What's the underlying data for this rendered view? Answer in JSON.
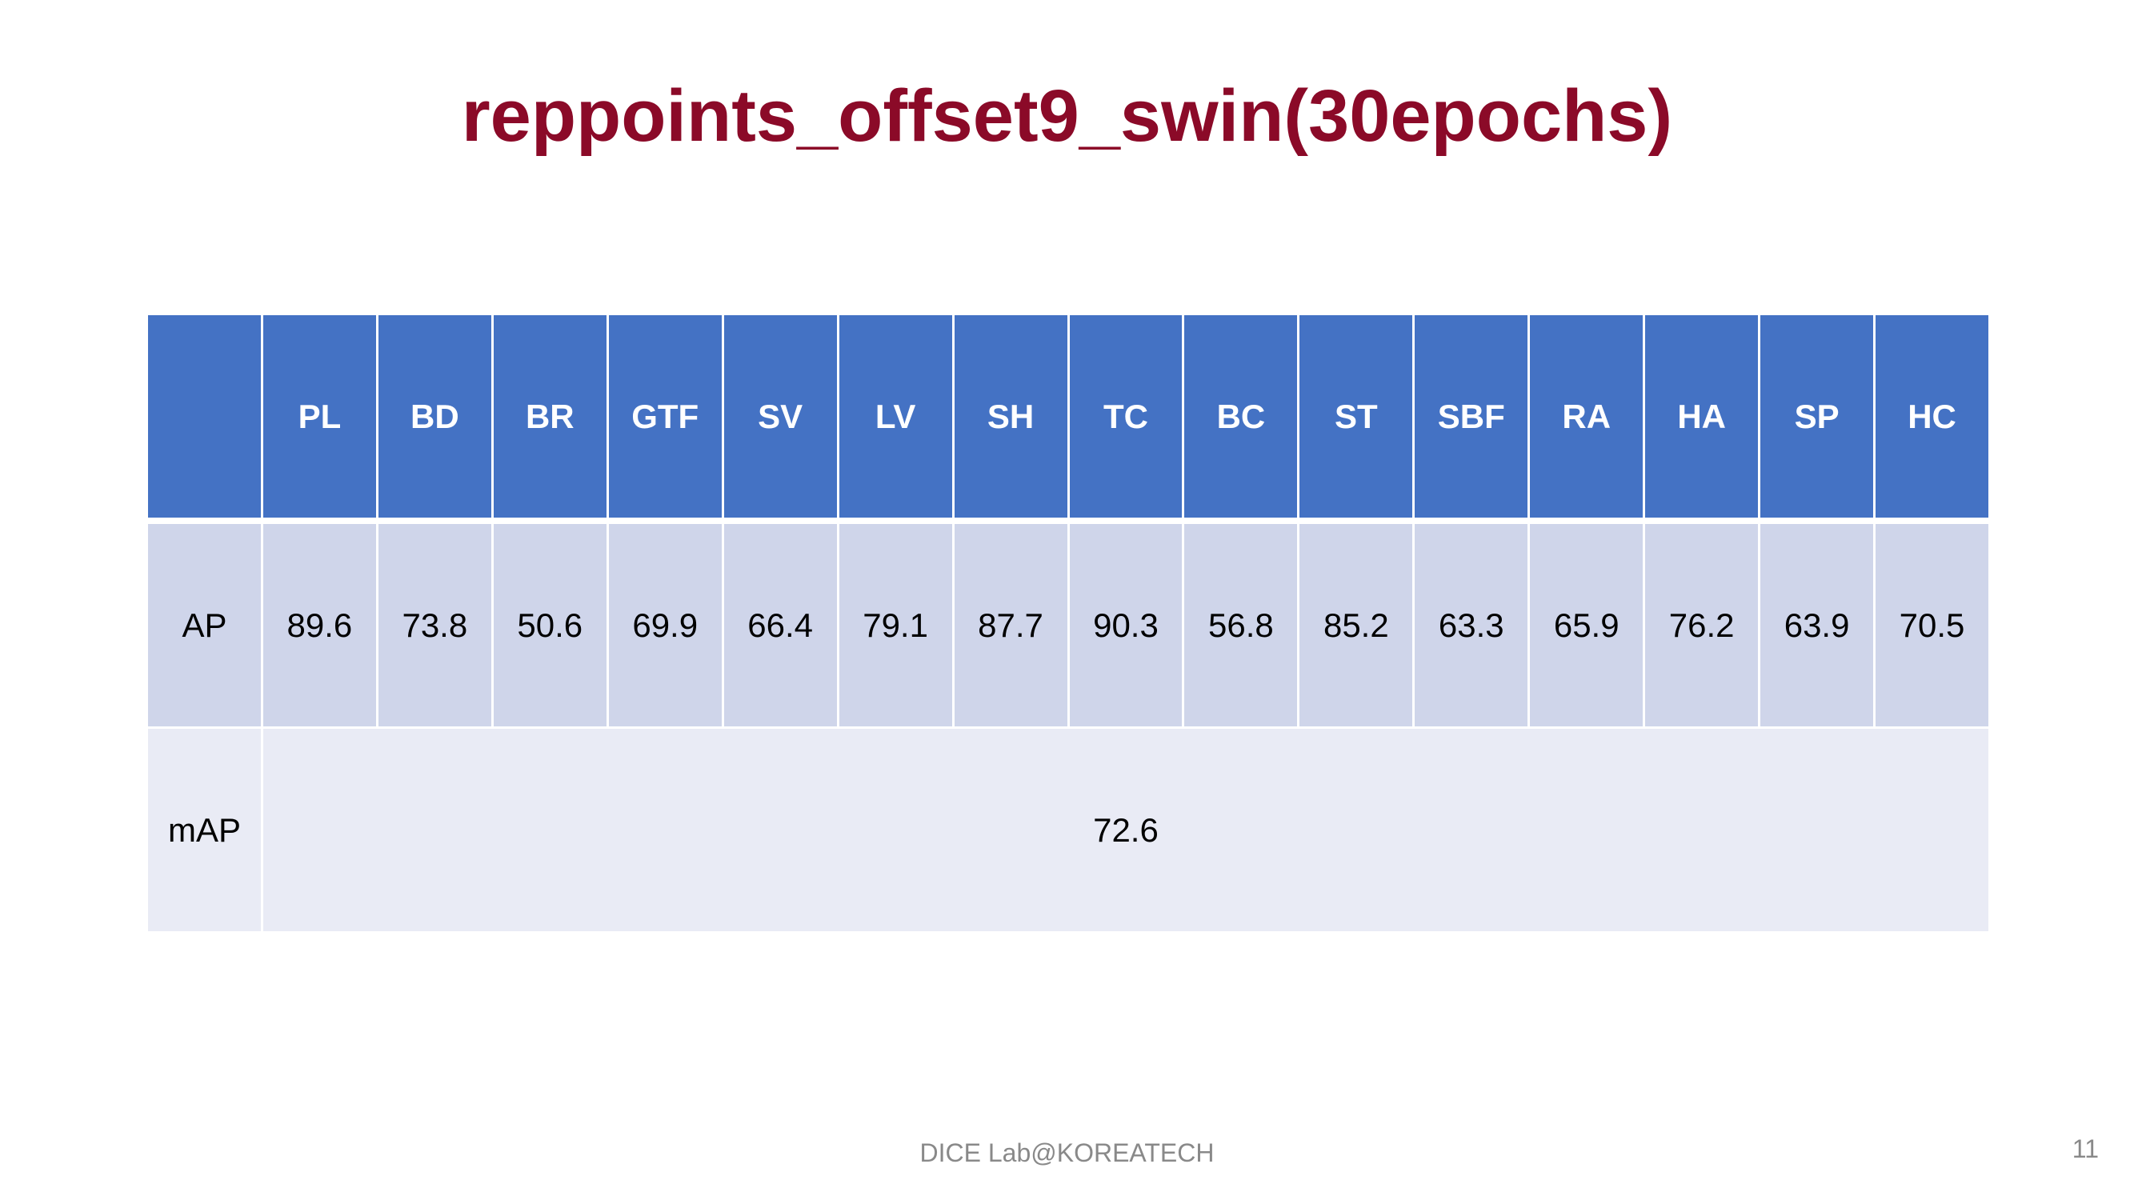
{
  "slide": {
    "title": "reppoints_offset9_swin(30epochs)",
    "footer": "DICE  Lab@KOREATECH",
    "page_number": "11"
  },
  "table": {
    "headers": [
      "",
      "PL",
      "BD",
      "BR",
      "GTF",
      "SV",
      "LV",
      "SH",
      "TC",
      "BC",
      "ST",
      "SBF",
      "RA",
      "HA",
      "SP",
      "HC"
    ],
    "ap_row": {
      "label": "AP",
      "values": [
        "89.6",
        "73.8",
        "50.6",
        "69.9",
        "66.4",
        "79.1",
        "87.7",
        "90.3",
        "56.8",
        "85.2",
        "63.3",
        "65.9",
        "76.2",
        "63.9",
        "70.5"
      ]
    },
    "map_row": {
      "label": "mAP",
      "value": "72.6"
    }
  },
  "colors": {
    "title": "#8B0A28",
    "header_bg": "#4472C4",
    "ap_row_bg": "#CFD5EA",
    "map_row_bg": "#E9EBF5",
    "footer_text": "#898989"
  }
}
